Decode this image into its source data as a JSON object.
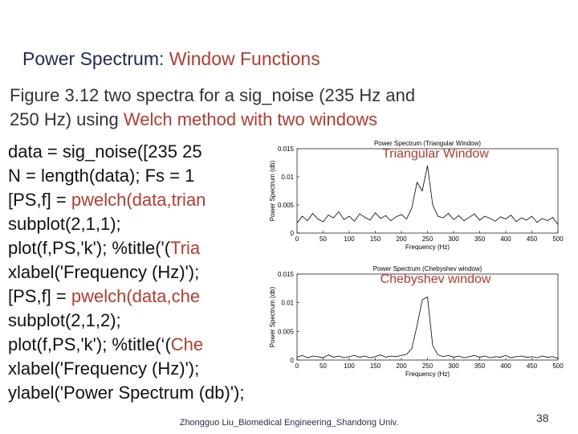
{
  "header": {
    "title": [
      "Power Spectrum:",
      " Window Functions"
    ]
  },
  "subtitle": [
    [
      "Figure 3.12  two spectra for a sig_noise (235 Hz and"
    ],
    [
      "250 Hz) using ",
      "Welch method with two windows"
    ]
  ],
  "code": [
    [
      "data = sig_noise([235 25"
    ],
    [
      "N = length(data);  Fs = 1"
    ],
    [
      "[PS,f] = ",
      "pwelch(data,trian"
    ],
    [
      "subplot(2,1,1);"
    ],
    [
      "plot(f,PS,'k'); %title('(",
      "Tria"
    ],
    [
      "xlabel('Frequency (Hz)');"
    ],
    [
      "[PS,f] = ",
      "pwelch(data,che"
    ],
    [
      "subplot(2,1,2);"
    ],
    [
      "plot(f,PS,'k'); %title(‘(",
      "Che"
    ],
    [
      "xlabel('Frequency (Hz)');"
    ],
    [
      "ylabel('Power Spectrum (db)');"
    ]
  ],
  "figure": {
    "panels": [
      {
        "title": "Power Spectrum (Triangular Window)",
        "annotation": "Triangular Window",
        "xlabel": "Frequency (Hz)",
        "ylabel": "Power Spectrum (db)",
        "xlim": [
          0,
          500
        ],
        "ylim": [
          0,
          0.015
        ],
        "xticks": [
          0,
          50,
          100,
          150,
          200,
          250,
          300,
          350,
          400,
          450,
          500
        ],
        "yticks": [
          0,
          0.005,
          0.01,
          0.015
        ],
        "x": [
          0,
          10,
          20,
          30,
          40,
          50,
          60,
          70,
          80,
          90,
          100,
          110,
          120,
          130,
          140,
          150,
          160,
          170,
          180,
          190,
          200,
          210,
          220,
          230,
          240,
          250,
          260,
          270,
          280,
          290,
          300,
          310,
          320,
          330,
          340,
          350,
          360,
          370,
          380,
          390,
          400,
          410,
          420,
          430,
          440,
          450,
          460,
          470,
          480,
          490,
          500
        ],
        "values": [
          0.0018,
          0.003,
          0.0022,
          0.0035,
          0.0025,
          0.002,
          0.0032,
          0.0027,
          0.0038,
          0.0024,
          0.003,
          0.0021,
          0.0034,
          0.0028,
          0.0023,
          0.0036,
          0.0026,
          0.0031,
          0.0022,
          0.0029,
          0.0033,
          0.0025,
          0.0045,
          0.009,
          0.0075,
          0.012,
          0.005,
          0.003,
          0.0027,
          0.0035,
          0.0024,
          0.0031,
          0.0022,
          0.0028,
          0.0034,
          0.0023,
          0.003,
          0.0026,
          0.0021,
          0.0029,
          0.0025,
          0.0032,
          0.002,
          0.0027,
          0.0023,
          0.003,
          0.0019,
          0.0026,
          0.0022,
          0.0028,
          0.0015
        ]
      },
      {
        "title": "Power Spectrum (Chebyshev window)",
        "annotation": "Chebyshev window",
        "xlabel": "Frequency (Hz)",
        "ylabel": "Power Spectrum (db)",
        "xlim": [
          0,
          500
        ],
        "ylim": [
          0,
          0.015
        ],
        "xticks": [
          0,
          50,
          100,
          150,
          200,
          250,
          300,
          350,
          400,
          450,
          500
        ],
        "yticks": [
          0,
          0.005,
          0.01,
          0.015
        ],
        "x": [
          0,
          10,
          20,
          30,
          40,
          50,
          60,
          70,
          80,
          90,
          100,
          110,
          120,
          130,
          140,
          150,
          160,
          170,
          180,
          190,
          200,
          210,
          220,
          230,
          240,
          250,
          260,
          270,
          280,
          290,
          300,
          310,
          320,
          330,
          340,
          350,
          360,
          370,
          380,
          390,
          400,
          410,
          420,
          430,
          440,
          450,
          460,
          470,
          480,
          490,
          500
        ],
        "values": [
          0.0005,
          0.0008,
          0.0004,
          0.0007,
          0.0006,
          0.0004,
          0.0009,
          0.0005,
          0.0007,
          0.0004,
          0.0006,
          0.0008,
          0.0005,
          0.0007,
          0.0004,
          0.0006,
          0.0009,
          0.0005,
          0.0007,
          0.0006,
          0.0008,
          0.001,
          0.002,
          0.006,
          0.0105,
          0.011,
          0.0025,
          0.0009,
          0.0006,
          0.0008,
          0.0005,
          0.0007,
          0.0004,
          0.0006,
          0.0008,
          0.0005,
          0.0007,
          0.0004,
          0.0006,
          0.0005,
          0.0008,
          0.0004,
          0.0006,
          0.0007,
          0.0005,
          0.0006,
          0.0004,
          0.0007,
          0.0005,
          0.0006,
          0.0003
        ]
      }
    ]
  },
  "footer": "Zhongguo Liu_Biomedical Engineering_Shandong Univ.",
  "page_number": "38"
}
